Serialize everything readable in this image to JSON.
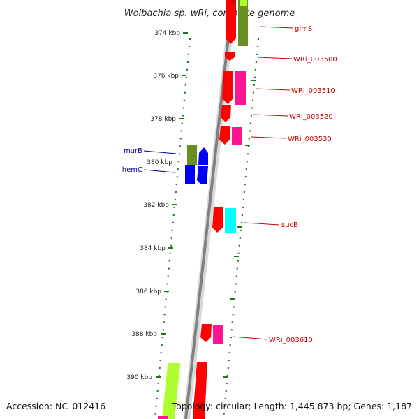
{
  "title": "Wolbachia sp. wRi, complete genome",
  "footer": {
    "accession": "Accession: NC_012416",
    "summary": "Topology: circular; Length: 1,445,873 bp; Genes: 1,187"
  },
  "colors": {
    "backbone": "#808080",
    "tick_mark": "#1a7a1a",
    "label_plus": "#cc0000",
    "label_minus": "#000099"
  },
  "kbp_ticks": [
    "374 kbp",
    "376 kbp",
    "378 kbp",
    "380 kbp",
    "382 kbp",
    "384 kbp",
    "386 kbp",
    "388 kbp",
    "390 kbp"
  ],
  "gene_labels": [
    {
      "text": "glmS",
      "strand": "plus"
    },
    {
      "text": "WRi_003500",
      "strand": "plus"
    },
    {
      "text": "WRi_003510",
      "strand": "plus"
    },
    {
      "text": "WRi_003520",
      "strand": "plus"
    },
    {
      "text": "WRi_003530",
      "strand": "plus"
    },
    {
      "text": "sucB",
      "strand": "plus"
    },
    {
      "text": "WRi_003610",
      "strand": "plus"
    },
    {
      "text": "murB",
      "strand": "minus"
    },
    {
      "text": "hemC",
      "strand": "minus"
    }
  ]
}
